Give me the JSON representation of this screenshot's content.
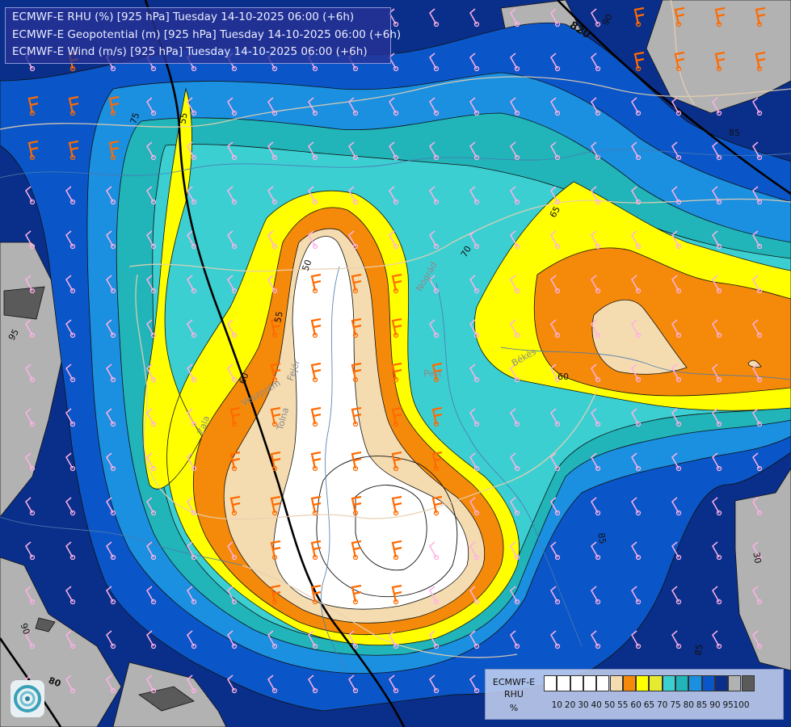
{
  "titles": {
    "line1": "ECMWF-E RHU (%) [925 hPa] Tuesday 14-10-2025 06:00 (+6h)",
    "line2": "ECMWF-E Geopotential (m) [925 hPa] Tuesday 14-10-2025 06:00 (+6h)",
    "line3": "ECMWF-E Wind (m/s) [925 hPa] Tuesday 14-10-2025 06:00 (+6h)"
  },
  "legend": {
    "label1": "ECMWF-E",
    "label2": "RHU",
    "label3": "%",
    "ticks": [
      "10",
      "20",
      "30",
      "40",
      "50",
      "55",
      "60",
      "65",
      "70",
      "75",
      "80",
      "85",
      "90",
      "95",
      "100"
    ],
    "colors": [
      "#ffffff",
      "#ffffff",
      "#ffffff",
      "#ffffff",
      "#ffffff",
      "#f5dcb0",
      "#f58a0a",
      "#ffff00",
      "#e6eb32",
      "#3ccfd2",
      "#21b4b8",
      "#1b8fe0",
      "#0a56c8",
      "#0a2f8a",
      "#b2b2b2",
      "#5a5a5a"
    ]
  },
  "contour_labels": {
    "geo_820": "820",
    "rhu_85_a": "85",
    "rhu_85_b": "85",
    "rhu_65": "65",
    "rhu_60": "60",
    "rhu_70": "70",
    "rhu_75": "75",
    "rhu_55": "55",
    "rhu_50": "50",
    "rhu_95": "95",
    "rhu_90": "90",
    "rhu_80": "80",
    "rhu_30": "30",
    "rhu_85_c": "85",
    "rhu_60_b": "60"
  },
  "place_labels": {
    "bekes": "Békés",
    "pest": "Pest",
    "zala": "Zala",
    "fejer": "Fejér",
    "tolna": "Tolna",
    "veszprem": "Veszprém",
    "nograd": "Nógrád"
  },
  "colors": {
    "gray": "#b2b2b2",
    "dark_navy": "#0a2f8a",
    "navy": "#0a56c8",
    "blue": "#1b8fe0",
    "teal": "#21b4b8",
    "cyan": "#3ccfd2",
    "yellow": "#ffff00",
    "orange": "#f58a0a",
    "beige": "#f5dcb0",
    "white": "#ffffff",
    "wind_slow": "#ffb0e6",
    "wind_fast": "#ff6a00",
    "wind_core": "#c8102e"
  }
}
